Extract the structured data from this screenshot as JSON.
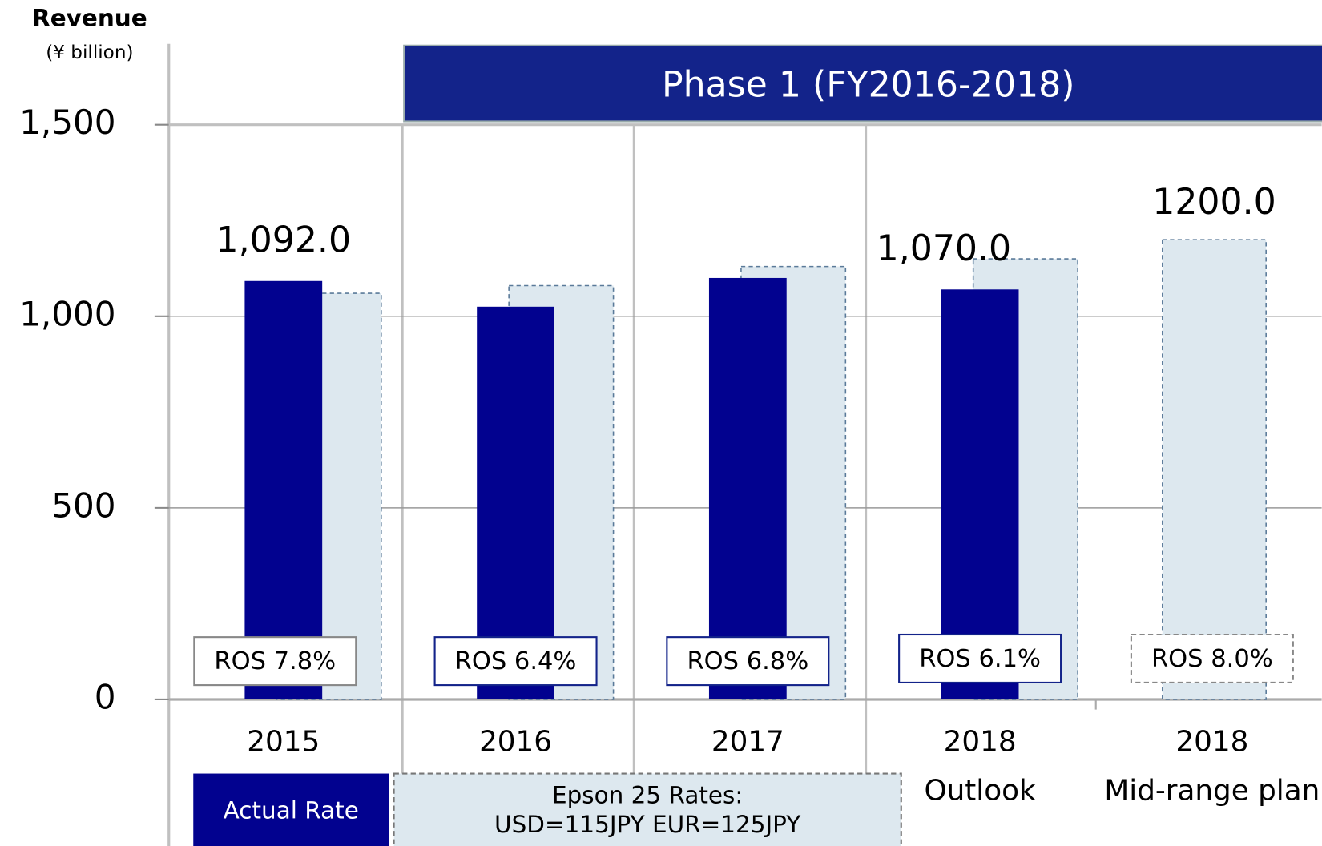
{
  "chart_data": {
    "type": "bar",
    "y_label": "Revenue",
    "y_unit": "(¥ billion)",
    "banner": "Phase 1 (FY2016-2018)",
    "categories": [
      "2015",
      "2016",
      "2017",
      "2018",
      "2018"
    ],
    "category_notes": [
      null,
      null,
      null,
      "Outlook",
      "Mid-range plan"
    ],
    "series": [
      {
        "name": "Actual Rate",
        "color": "#02028f",
        "values": [
          1092,
          1025,
          1100,
          1070,
          null
        ],
        "value_labels": [
          "1,092.0",
          null,
          null,
          "1,070.0",
          null
        ]
      },
      {
        "name": "Epson 25 Rates:\nUSD=115JPY  EUR=125JPY",
        "color": "#dde8ef",
        "values": [
          1060,
          1080,
          1130,
          1150,
          1200
        ],
        "value_labels": [
          null,
          null,
          null,
          null,
          "1200.0"
        ]
      }
    ],
    "ros_labels": [
      "ROS 7.8%",
      "ROS 6.4%",
      "ROS 6.8%",
      "ROS 6.1%",
      "ROS 8.0%"
    ],
    "ros_box_colors": [
      "#888888",
      "#13238a",
      "#13238a",
      "#13238a",
      "#888888"
    ],
    "ylim": [
      0,
      1500
    ],
    "yticks": [
      0,
      500,
      {
        "value": 1000,
        "label": "1,000"
      },
      {
        "value": 1500,
        "label": "1,500"
      }
    ],
    "grid": true
  }
}
